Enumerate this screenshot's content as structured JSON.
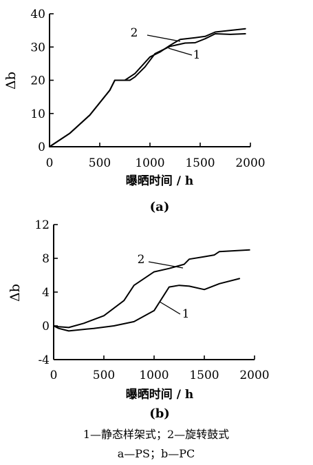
{
  "chart_data": [
    {
      "type": "line",
      "panel": "(a)",
      "xlabel": "曝晒时间 / h",
      "ylabel": "Δb",
      "xlim": [
        0,
        2000
      ],
      "ylim": [
        0,
        40
      ],
      "xticks": [
        "0",
        "500",
        "1000",
        "1500",
        "2000"
      ],
      "yticks": [
        "0",
        "10",
        "20",
        "30",
        "40"
      ],
      "series": [
        {
          "name": "1",
          "points": [
            [
              0,
              0
            ],
            [
              200,
              4
            ],
            [
              400,
              9.5
            ],
            [
              600,
              17
            ],
            [
              650,
              20
            ],
            [
              800,
              20
            ],
            [
              850,
              21
            ],
            [
              950,
              24
            ],
            [
              1050,
              28
            ],
            [
              1200,
              30.2
            ],
            [
              1350,
              31.2
            ],
            [
              1450,
              31.3
            ],
            [
              1550,
              32.5
            ],
            [
              1650,
              34
            ],
            [
              1800,
              33.8
            ],
            [
              1950,
              34
            ]
          ]
        },
        {
          "name": "2",
          "points": [
            [
              0,
              0
            ],
            [
              200,
              4
            ],
            [
              400,
              9.5
            ],
            [
              600,
              17
            ],
            [
              650,
              20
            ],
            [
              750,
              20
            ],
            [
              850,
              22
            ],
            [
              1000,
              27
            ],
            [
              1100,
              28.5
            ],
            [
              1200,
              30.5
            ],
            [
              1300,
              32.3
            ],
            [
              1450,
              32.8
            ],
            [
              1550,
              33.2
            ],
            [
              1650,
              34.5
            ],
            [
              1800,
              35
            ],
            [
              1950,
              35.5
            ]
          ]
        }
      ]
    },
    {
      "type": "line",
      "panel": "(b)",
      "xlabel": "曝晒时间 / h",
      "ylabel": "Δb",
      "xlim": [
        0,
        2000
      ],
      "ylim": [
        -4,
        12
      ],
      "xticks": [
        "0",
        "500",
        "1000",
        "1500",
        "2000"
      ],
      "yticks": [
        "-4",
        "0",
        "4",
        "8",
        "12"
      ],
      "series": [
        {
          "name": "1",
          "points": [
            [
              0,
              0
            ],
            [
              50,
              -0.3
            ],
            [
              150,
              -0.6
            ],
            [
              400,
              -0.3
            ],
            [
              600,
              0
            ],
            [
              800,
              0.5
            ],
            [
              1000,
              1.8
            ],
            [
              1150,
              4.6
            ],
            [
              1250,
              4.8
            ],
            [
              1350,
              4.7
            ],
            [
              1500,
              4.3
            ],
            [
              1650,
              5
            ],
            [
              1850,
              5.6
            ]
          ]
        },
        {
          "name": "2",
          "points": [
            [
              0,
              0
            ],
            [
              50,
              -0.1
            ],
            [
              150,
              -0.2
            ],
            [
              300,
              0.3
            ],
            [
              500,
              1.2
            ],
            [
              700,
              3
            ],
            [
              800,
              4.8
            ],
            [
              1000,
              6.4
            ],
            [
              1150,
              6.8
            ],
            [
              1300,
              7.3
            ],
            [
              1350,
              7.9
            ],
            [
              1500,
              8.2
            ],
            [
              1600,
              8.4
            ],
            [
              1650,
              8.8
            ],
            [
              1800,
              8.9
            ],
            [
              1950,
              9
            ]
          ]
        }
      ]
    }
  ],
  "caption": {
    "line1": "1—静态样架式；2—旋转鼓式",
    "line2": "a—PS；b—PC"
  }
}
